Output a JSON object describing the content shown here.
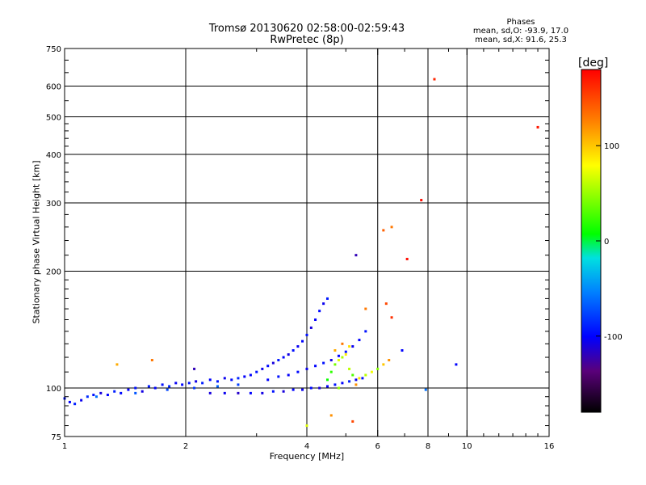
{
  "title": {
    "line1": "Tromsø 20130620 02:58:00-02:59:43",
    "line2": "RwPretec (8p)"
  },
  "phases": {
    "heading": "Phases",
    "o_line": "mean, sd,O: -93.9, 17.0",
    "x_line": "mean, sd,X: 91.6, 25.3"
  },
  "colorbar": {
    "unit_label": "[deg]",
    "ticks": [
      "100",
      "0",
      "-100"
    ],
    "range": [
      -180,
      180
    ]
  },
  "chart_data": {
    "type": "scatter",
    "title": "Tromsø 20130620 02:58:00-02:59:43",
    "subtitle": "RwPretec (8p)",
    "xlabel": "Frequency [MHz]",
    "ylabel": "Stationary phase Virtual Height [km]",
    "x_scale": "log",
    "y_scale": "log",
    "xlim": [
      1,
      16
    ],
    "ylim": [
      75,
      750
    ],
    "xticks": [
      "1",
      "2",
      "4",
      "6",
      "8",
      "10",
      "16"
    ],
    "yticks": [
      "75",
      "100",
      "200",
      "300",
      "400",
      "500",
      "600",
      "750"
    ],
    "grid": true,
    "series": [
      {
        "color_range": [
          -180,
          180
        ],
        "points": [
          [
            1.0,
            94,
            -95
          ],
          [
            1.03,
            92,
            -100
          ],
          [
            1.06,
            91,
            -90
          ],
          [
            1.1,
            93,
            -105
          ],
          [
            1.14,
            95,
            -85
          ],
          [
            1.18,
            96,
            -95
          ],
          [
            1.23,
            97,
            -110
          ],
          [
            1.28,
            96,
            -100
          ],
          [
            1.33,
            98,
            -90
          ],
          [
            1.38,
            97,
            -98
          ],
          [
            1.44,
            99,
            -102
          ],
          [
            1.5,
            100,
            -95
          ],
          [
            1.56,
            98,
            -108
          ],
          [
            1.62,
            101,
            -92
          ],
          [
            1.68,
            100,
            -100
          ],
          [
            1.75,
            102,
            -96
          ],
          [
            1.82,
            101,
            -88
          ],
          [
            1.89,
            103,
            -104
          ],
          [
            1.96,
            102,
            -99
          ],
          [
            2.04,
            103,
            -95
          ],
          [
            2.12,
            104,
            -108
          ],
          [
            2.2,
            103,
            -90
          ],
          [
            2.3,
            105,
            -100
          ],
          [
            2.4,
            104,
            -93
          ],
          [
            2.5,
            106,
            -105
          ],
          [
            2.6,
            105,
            -97
          ],
          [
            2.7,
            106,
            -88
          ],
          [
            2.8,
            107,
            -102
          ],
          [
            1.2,
            95,
            -60
          ],
          [
            1.5,
            97,
            -70
          ],
          [
            1.8,
            99,
            -75
          ],
          [
            2.1,
            100,
            -80
          ],
          [
            2.4,
            101,
            -65
          ],
          [
            2.7,
            102,
            -78
          ],
          [
            2.3,
            97,
            -110
          ],
          [
            2.5,
            97,
            -105
          ],
          [
            2.7,
            97,
            -115
          ],
          [
            2.9,
            97,
            -100
          ],
          [
            3.1,
            97,
            -108
          ],
          [
            3.3,
            98,
            -95
          ],
          [
            3.5,
            98,
            -110
          ],
          [
            3.7,
            99,
            -100
          ],
          [
            3.9,
            99,
            -105
          ],
          [
            4.1,
            100,
            -98
          ],
          [
            4.3,
            100,
            -110
          ],
          [
            4.5,
            101,
            -102
          ],
          [
            4.7,
            102,
            -95
          ],
          [
            4.9,
            103,
            -100
          ],
          [
            5.1,
            104,
            -90
          ],
          [
            5.3,
            105,
            -105
          ],
          [
            5.5,
            106,
            -95
          ],
          [
            2.9,
            108,
            -100
          ],
          [
            3.0,
            110,
            -95
          ],
          [
            3.1,
            112,
            -105
          ],
          [
            3.2,
            114,
            -98
          ],
          [
            3.3,
            116,
            -110
          ],
          [
            3.4,
            118,
            -92
          ],
          [
            3.5,
            120,
            -100
          ],
          [
            3.6,
            122,
            -108
          ],
          [
            3.7,
            125,
            -96
          ],
          [
            3.8,
            128,
            -104
          ],
          [
            3.9,
            132,
            -100
          ],
          [
            4.0,
            137,
            -95
          ],
          [
            4.1,
            143,
            -110
          ],
          [
            4.2,
            150,
            -102
          ],
          [
            4.3,
            158,
            -98
          ],
          [
            4.4,
            165,
            -105
          ],
          [
            4.5,
            170,
            -92
          ],
          [
            3.2,
            105,
            -100
          ],
          [
            3.4,
            107,
            -95
          ],
          [
            3.6,
            108,
            -102
          ],
          [
            3.8,
            110,
            -98
          ],
          [
            4.0,
            112,
            -105
          ],
          [
            4.2,
            114,
            -100
          ],
          [
            4.4,
            116,
            -95
          ],
          [
            4.6,
            118,
            -108
          ],
          [
            4.8,
            121,
            -100
          ],
          [
            5.0,
            124,
            -96
          ],
          [
            5.2,
            128,
            -104
          ],
          [
            5.4,
            133,
            -100
          ],
          [
            5.6,
            140,
            -95
          ],
          [
            4.6,
            110,
            20
          ],
          [
            4.7,
            115,
            40
          ],
          [
            4.8,
            118,
            70
          ],
          [
            4.9,
            120,
            55
          ],
          [
            5.0,
            122,
            85
          ],
          [
            5.1,
            112,
            60
          ],
          [
            5.2,
            108,
            30
          ],
          [
            5.4,
            106,
            90
          ],
          [
            5.6,
            108,
            60
          ],
          [
            5.8,
            110,
            75
          ],
          [
            6.0,
            112,
            45
          ],
          [
            6.2,
            115,
            100
          ],
          [
            6.4,
            118,
            120
          ],
          [
            4.7,
            125,
            110
          ],
          [
            4.9,
            130,
            130
          ],
          [
            5.1,
            128,
            90
          ],
          [
            4.5,
            105,
            10
          ],
          [
            4.8,
            100,
            50
          ],
          [
            5.3,
            102,
            120
          ],
          [
            5.6,
            160,
            130
          ],
          [
            6.3,
            165,
            150
          ],
          [
            6.5,
            152,
            160
          ],
          [
            6.2,
            255,
            140
          ],
          [
            6.5,
            260,
            130
          ],
          [
            7.1,
            215,
            175
          ],
          [
            8.3,
            625,
            165
          ],
          [
            15.0,
            470,
            170
          ],
          [
            7.7,
            305,
            175
          ],
          [
            5.3,
            220,
            -120
          ],
          [
            1.35,
            115,
            110
          ],
          [
            1.65,
            118,
            130
          ],
          [
            2.1,
            112,
            -120
          ],
          [
            6.9,
            125,
            -100
          ],
          [
            7.9,
            99,
            -60
          ],
          [
            9.4,
            115,
            -100
          ],
          [
            4.0,
            80,
            70
          ],
          [
            4.6,
            85,
            120
          ],
          [
            5.2,
            82,
            150
          ]
        ]
      }
    ]
  }
}
